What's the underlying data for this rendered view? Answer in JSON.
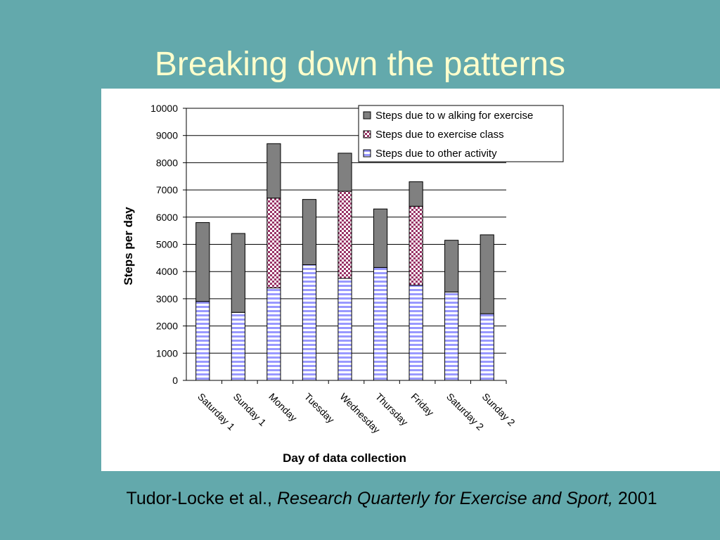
{
  "slide": {
    "title": "Breaking down the patterns",
    "citation": {
      "authors": "Tudor-Locke et al.,",
      "journal": "Research Quarterly for Exercise and Sport,",
      "year": "2001"
    }
  },
  "colors": {
    "background": "#63a9ac",
    "title": "#ffffcc",
    "walking": "#808080",
    "exercise_class": "#993366",
    "other_activity": "#9999ff"
  },
  "chart_data": {
    "type": "bar",
    "stacked": true,
    "title": "",
    "xlabel": "Day of data collection",
    "ylabel": "Steps per day",
    "ylim": [
      0,
      10000
    ],
    "yticks": [
      0,
      1000,
      2000,
      3000,
      4000,
      5000,
      6000,
      7000,
      8000,
      9000,
      10000
    ],
    "grid": true,
    "legend_position": "top-right",
    "categories": [
      "Saturday 1",
      "Sunday 1",
      "Monday",
      "Tuesday",
      "Wednesday",
      "Thursday",
      "Friday",
      "Saturday 2",
      "Sunday 2"
    ],
    "series": [
      {
        "name": "Steps due to other activity",
        "pattern": "horizontal-stripes",
        "color": "#9999ff",
        "values": [
          2900,
          2500,
          3400,
          4250,
          3750,
          4150,
          3500,
          3250,
          2450
        ]
      },
      {
        "name": "Steps due to exercise class",
        "pattern": "checkered",
        "color": "#993366",
        "values": [
          0,
          0,
          3300,
          0,
          3200,
          0,
          2900,
          0,
          0
        ]
      },
      {
        "name": "Steps due to w alking for exercise",
        "pattern": "solid",
        "color": "#808080",
        "values": [
          2900,
          2900,
          2000,
          2400,
          1400,
          2150,
          900,
          1900,
          2900
        ]
      }
    ]
  }
}
